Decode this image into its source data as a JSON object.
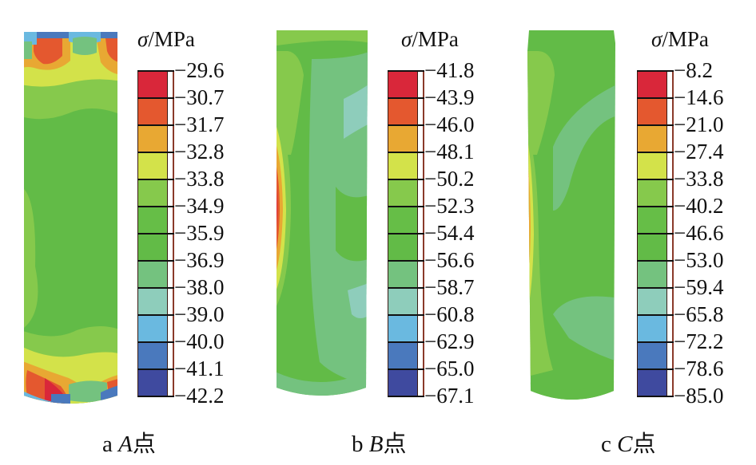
{
  "figure": {
    "unit_symbol": "σ",
    "unit_text": "/MPa",
    "band_colors": [
      "#d9273a",
      "#e4582f",
      "#e8a833",
      "#d3e24a",
      "#86c94c",
      "#66be47",
      "#62bb47",
      "#74c27f",
      "#8ecdbb",
      "#6ab9e0",
      "#4a79bd",
      "#3f4a9f"
    ],
    "panels": [
      {
        "id": "a",
        "caption_letter": "a",
        "caption_point": "A",
        "caption_suffix": "点",
        "legend_values": [
          "−29.6",
          "−30.7",
          "−31.7",
          "−32.8",
          "−33.8",
          "−34.9",
          "−35.9",
          "−36.9",
          "−38.0",
          "−39.0",
          "−40.0",
          "−41.1",
          "−42.2"
        ],
        "description": "Cylinder stress contour: high stress (red/orange) and low stress (blue) bands concentrated at top and bottom ends, uniform green body"
      },
      {
        "id": "b",
        "caption_letter": "b",
        "caption_point": "B",
        "caption_suffix": "点",
        "legend_values": [
          "−41.8",
          "−43.9",
          "−46.0",
          "−48.1",
          "−50.2",
          "−52.3",
          "−54.4",
          "−56.6",
          "−58.7",
          "−60.8",
          "−62.9",
          "−65.0",
          "−67.1"
        ],
        "description": "Cylinder stress contour: red/orange concentration along left side middle, teal patches on right"
      },
      {
        "id": "c",
        "caption_letter": "c",
        "caption_point": "C",
        "caption_suffix": "点",
        "legend_values": [
          "−8.2",
          "−14.6",
          "−21.0",
          "−27.4",
          "−33.8",
          "−40.2",
          "−46.6",
          "−53.0",
          "−59.4",
          "−65.8",
          "−72.2",
          "−78.6",
          "−85.0"
        ],
        "description": "Cylinder stress contour: narrow red strip along left edge, green body with lighter teal-green regions"
      }
    ]
  }
}
